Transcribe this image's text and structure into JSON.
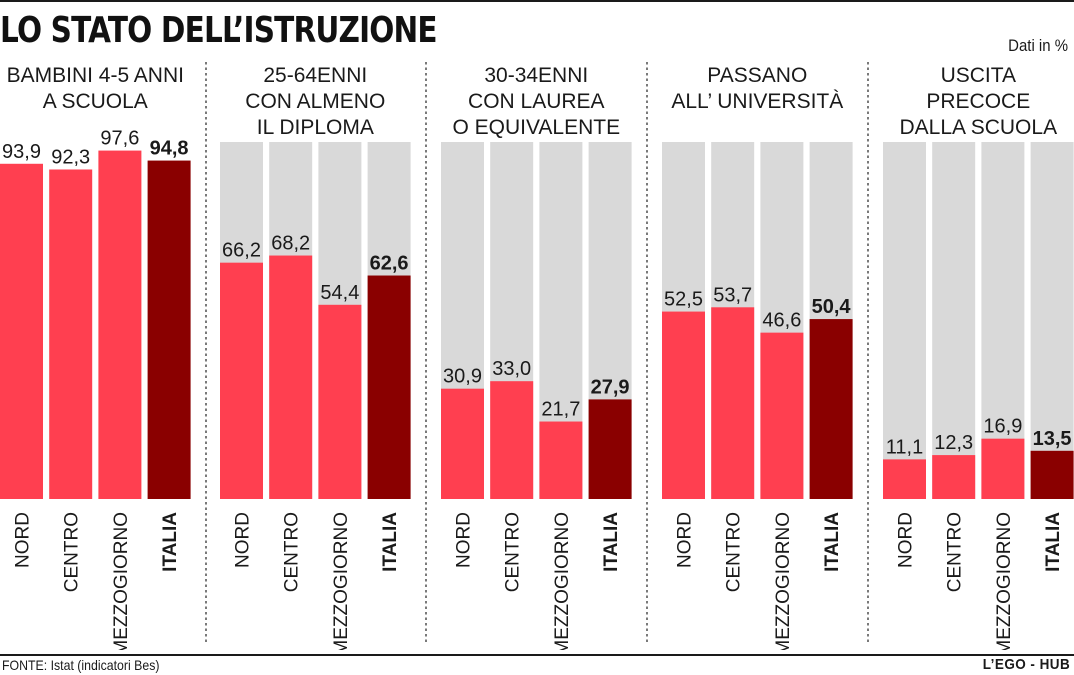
{
  "header": {
    "title": "LO STATO DELL’ISTRUZIONE",
    "unit_note": "Dati in %"
  },
  "footer": {
    "source": "FONTE: Istat (indicatori Bes)",
    "credit": "L’EGO - HUB"
  },
  "colors": {
    "region_bar": "#ff3f50",
    "italia_bar": "#8a0000",
    "track": "#d9d9d9",
    "text": "#1a1a1a"
  },
  "chart_data": [
    {
      "type": "bar",
      "title_lines": [
        "BAMBINI 4-5 ANNI",
        "A SCUOLA"
      ],
      "categories": [
        "NORD",
        "CENTRO",
        "MEZZOGIORNO",
        "ITALIA"
      ],
      "values": [
        93.9,
        92.3,
        97.6,
        94.8
      ],
      "value_labels": [
        "93,9",
        "92,3",
        "97,6",
        "94,8"
      ],
      "highlight": "ITALIA",
      "show_track": false,
      "ylim": [
        0,
        100
      ]
    },
    {
      "type": "bar",
      "title_lines": [
        "25-64ENNI",
        "CON ALMENO",
        "IL DIPLOMA"
      ],
      "categories": [
        "NORD",
        "CENTRO",
        "MEZZOGIORNO",
        "ITALIA"
      ],
      "values": [
        66.2,
        68.2,
        54.4,
        62.6
      ],
      "value_labels": [
        "66,2",
        "68,2",
        "54,4",
        "62,6"
      ],
      "highlight": "ITALIA",
      "show_track": true,
      "ylim": [
        0,
        100
      ]
    },
    {
      "type": "bar",
      "title_lines": [
        "30-34ENNI",
        "CON LAUREA",
        "O EQUIVALENTE"
      ],
      "categories": [
        "NORD",
        "CENTRO",
        "MEZZOGIORNO",
        "ITALIA"
      ],
      "values": [
        30.9,
        33.0,
        21.7,
        27.9
      ],
      "value_labels": [
        "30,9",
        "33,0",
        "21,7",
        "27,9"
      ],
      "highlight": "ITALIA",
      "show_track": true,
      "ylim": [
        0,
        100
      ]
    },
    {
      "type": "bar",
      "title_lines": [
        "PASSANO",
        "ALL’ UNIVERSITÀ"
      ],
      "categories": [
        "NORD",
        "CENTRO",
        "MEZZOGIORNO",
        "ITALIA"
      ],
      "values": [
        52.5,
        53.7,
        46.6,
        50.4
      ],
      "value_labels": [
        "52,5",
        "53,7",
        "46,6",
        "50,4"
      ],
      "highlight": "ITALIA",
      "show_track": true,
      "ylim": [
        0,
        100
      ]
    },
    {
      "type": "bar",
      "title_lines": [
        "USCITA",
        "PRECOCE",
        "DALLA SCUOLA"
      ],
      "categories": [
        "NORD",
        "CENTRO",
        "MEZZOGIORNO",
        "ITALIA"
      ],
      "values": [
        11.1,
        12.3,
        16.9,
        13.5
      ],
      "value_labels": [
        "11,1",
        "12,3",
        "16,9",
        "13,5"
      ],
      "highlight": "ITALIA",
      "show_track": true,
      "ylim": [
        0,
        100
      ]
    }
  ]
}
